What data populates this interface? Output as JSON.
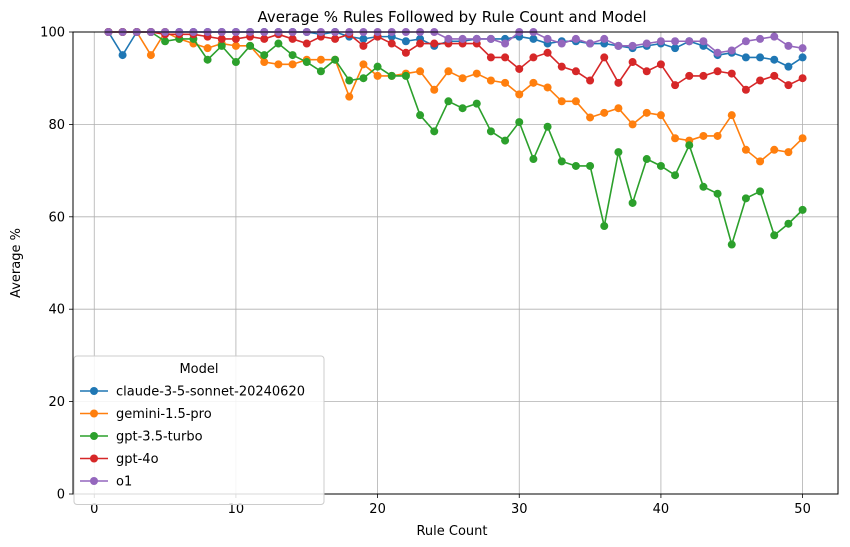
{
  "chart_data": {
    "type": "line",
    "title": "Average % Rules Followed by Rule Count and Model",
    "xlabel": "Rule Count",
    "ylabel": "Average %",
    "xlim": [
      -1.5,
      52.5
    ],
    "ylim": [
      0,
      100
    ],
    "xticks": [
      0,
      10,
      20,
      30,
      40,
      50
    ],
    "yticks": [
      0,
      20,
      40,
      60,
      80,
      100
    ],
    "grid": true,
    "legend_title": "Model",
    "legend_position": "lower-left",
    "x": [
      1,
      2,
      3,
      4,
      5,
      6,
      7,
      8,
      9,
      10,
      11,
      12,
      13,
      14,
      15,
      16,
      17,
      18,
      19,
      20,
      21,
      22,
      23,
      24,
      25,
      26,
      27,
      28,
      29,
      30,
      31,
      32,
      33,
      34,
      35,
      36,
      37,
      38,
      39,
      40,
      41,
      42,
      43,
      44,
      45,
      46,
      47,
      48,
      49,
      50
    ],
    "series": [
      {
        "name": "claude-3-5-sonnet-20240620",
        "color": "#1f77b4",
        "values": [
          100,
          95,
          100,
          100,
          100,
          100,
          100,
          100,
          100,
          100,
          100,
          100,
          100,
          100,
          100,
          99.5,
          100,
          99,
          98.5,
          99,
          99,
          98,
          98.5,
          97,
          98,
          98,
          98.5,
          98.5,
          98.5,
          99,
          98.5,
          97.5,
          98,
          98,
          97.5,
          97.5,
          97,
          96.5,
          97,
          97.5,
          96.5,
          98,
          97,
          95,
          95.5,
          94.5,
          94.5,
          94,
          92.5,
          94.5
        ]
      },
      {
        "name": "gemini-1.5-pro",
        "color": "#ff7f0e",
        "values": [
          100,
          100,
          100,
          95,
          100,
          98.5,
          97.5,
          96.5,
          97.5,
          97,
          97,
          93.5,
          93,
          93,
          94,
          94,
          94,
          86,
          93,
          90.5,
          90.5,
          91,
          91.5,
          87.5,
          91.5,
          90,
          91,
          89.5,
          89,
          86.5,
          89,
          88,
          85,
          85,
          81.5,
          82.5,
          83.5,
          80,
          82.5,
          82,
          77,
          76.5,
          77.5,
          77.5,
          82,
          74.5,
          72,
          74.5,
          74,
          77
        ]
      },
      {
        "name": "gpt-3.5-turbo",
        "color": "#2ca02c",
        "values": [
          100,
          100,
          100,
          100,
          98,
          98.5,
          98.5,
          94,
          97,
          93.5,
          97,
          95,
          97.5,
          95,
          93.5,
          91.5,
          94,
          89.5,
          90,
          92.5,
          90.5,
          90.5,
          82,
          78.5,
          85,
          83.5,
          84.5,
          78.5,
          76.5,
          80.5,
          72.5,
          79.5,
          72,
          71,
          71,
          58,
          74,
          63,
          72.5,
          71,
          69,
          75.5,
          66.5,
          65,
          54,
          64,
          65.5,
          56,
          58.5,
          61.5
        ]
      },
      {
        "name": "gpt-4o",
        "color": "#d62728",
        "values": [
          100,
          100,
          100,
          100,
          99.5,
          99.5,
          99.5,
          99,
          98.5,
          98.5,
          99,
          98.5,
          99.5,
          98.5,
          97.5,
          99,
          98.5,
          99.5,
          97,
          99,
          97.5,
          95.5,
          97.5,
          97.5,
          97.5,
          97.5,
          97.5,
          94.5,
          94.5,
          92,
          94.5,
          95.5,
          92.5,
          91.5,
          89.5,
          94.5,
          89,
          93.5,
          91.5,
          93,
          88.5,
          90.5,
          90.5,
          91.5,
          91,
          87.5,
          89.5,
          90.5,
          88.5,
          90
        ]
      },
      {
        "name": "o1",
        "color": "#9467bd",
        "values": [
          100,
          100,
          100,
          100,
          100,
          100,
          100,
          100,
          100,
          100,
          100,
          100,
          100,
          100,
          100,
          100,
          100,
          100,
          100,
          100,
          100,
          100,
          100,
          100,
          98.5,
          98.5,
          98.5,
          98.5,
          97.5,
          100,
          100,
          98.5,
          97.5,
          98.5,
          97.5,
          98.5,
          97,
          97,
          97.5,
          98,
          98,
          98,
          98,
          95.5,
          96,
          98,
          98.5,
          99,
          97,
          96.5
        ]
      }
    ]
  }
}
